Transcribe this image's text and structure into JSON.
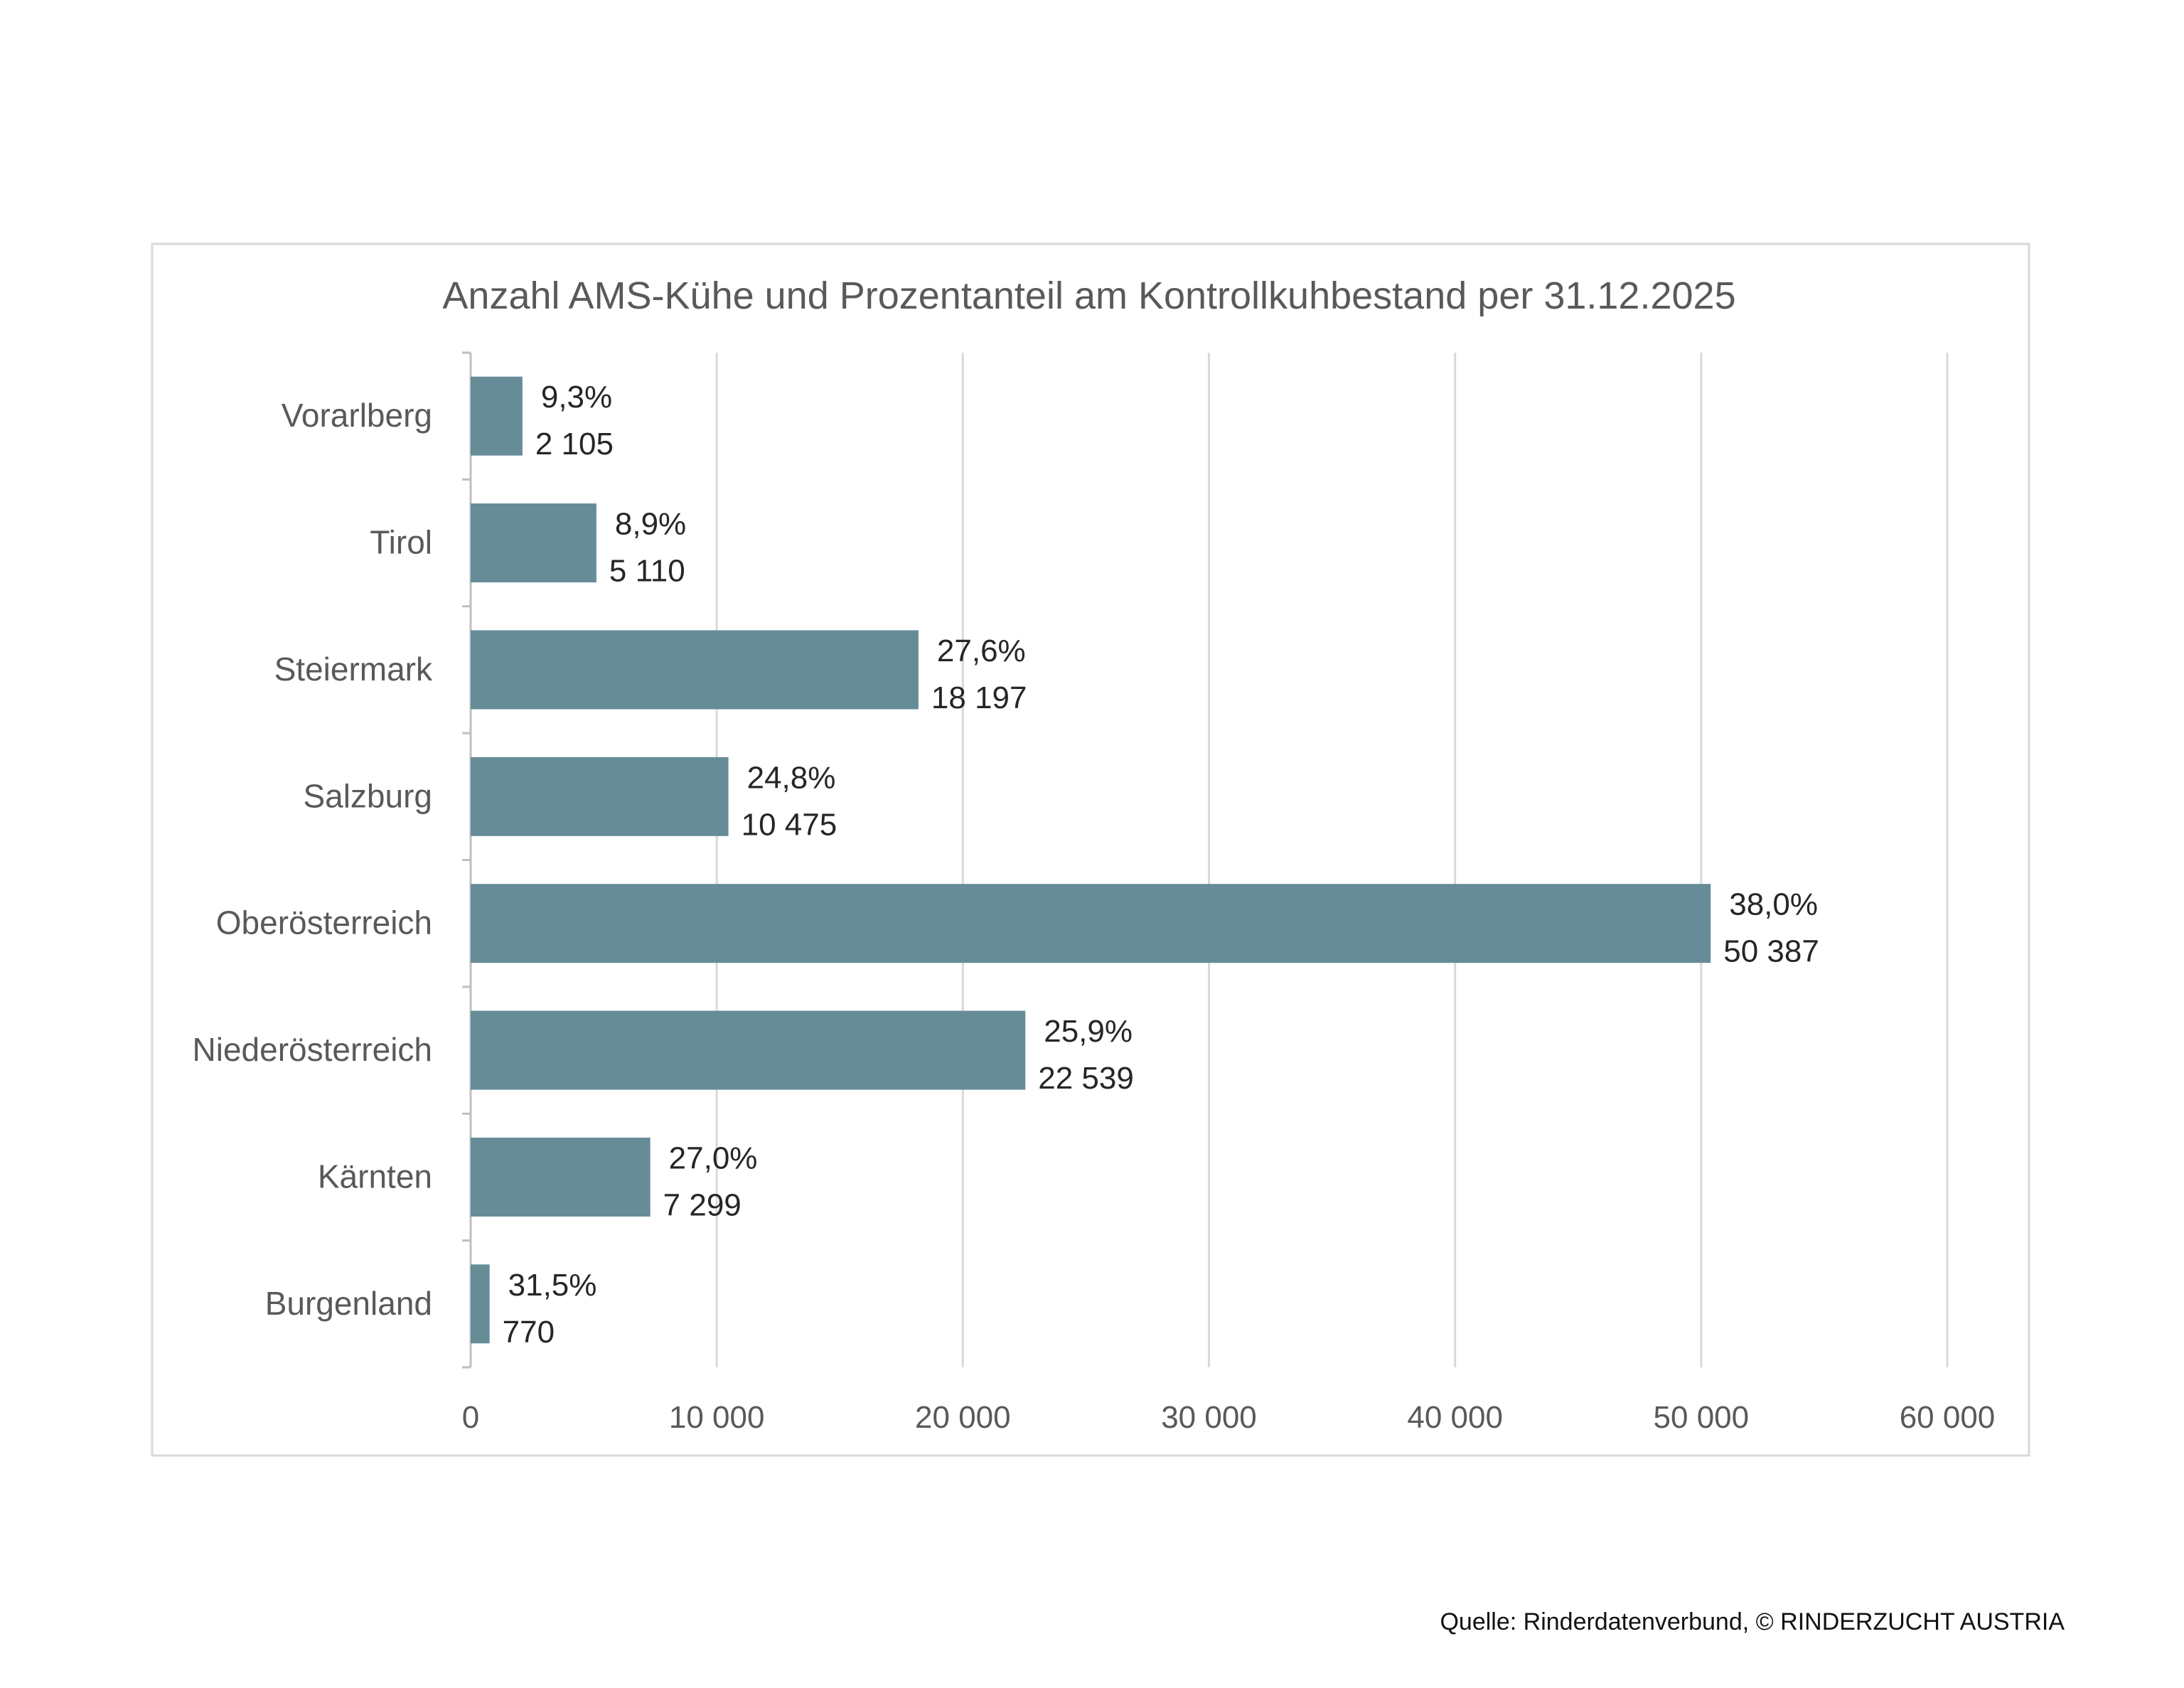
{
  "chart_data": {
    "type": "bar",
    "orientation": "horizontal",
    "title": "Anzahl AMS-Kühe und Prozentanteil am Kontrollkuhbestand per 31.12.2025",
    "categories": [
      "Vorarlberg",
      "Tirol",
      "Steiermark",
      "Salzburg",
      "Oberösterreich",
      "Niederösterreich",
      "Kärnten",
      "Burgenland"
    ],
    "values": [
      2105,
      5110,
      18197,
      10475,
      50387,
      22539,
      7299,
      770
    ],
    "value_labels": [
      "2 105",
      "5 110",
      "18 197",
      "10 475",
      "50 387",
      "22 539",
      "7 299",
      "770"
    ],
    "percent_labels": [
      "9,3%",
      "8,9%",
      "27,6%",
      "24,8%",
      "38,0%",
      "25,9%",
      "27,0%",
      "31,5%"
    ],
    "xlim": [
      0,
      60000
    ],
    "xticks": [
      0,
      10000,
      20000,
      30000,
      40000,
      50000,
      60000
    ],
    "xtick_labels": [
      "0",
      "10 000",
      "20 000",
      "30 000",
      "40 000",
      "50 000",
      "60 000"
    ],
    "xlabel": "",
    "ylabel": "",
    "grid": "vertical",
    "bar_color": "#668c98"
  },
  "source": "Quelle: Rinderdatenverbund, © RINDERZUCHT AUSTRIA"
}
